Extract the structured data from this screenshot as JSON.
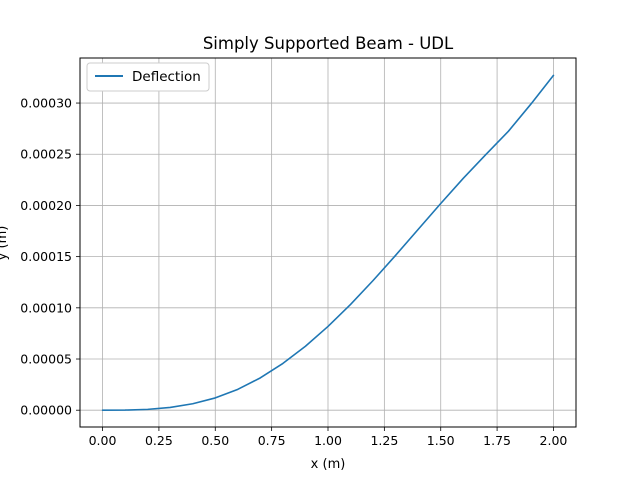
{
  "chart_data": {
    "type": "line",
    "title": "Simply Supported Beam - UDL",
    "xlabel": "x (m)",
    "ylabel": "y (m)",
    "xlim": [
      -0.1,
      2.1
    ],
    "ylim": [
      -1.64e-05,
      0.000344
    ],
    "xticks": [
      0.0,
      0.25,
      0.5,
      0.75,
      1.0,
      1.25,
      1.5,
      1.75,
      2.0
    ],
    "xtick_labels": [
      "0.00",
      "0.25",
      "0.50",
      "0.75",
      "1.00",
      "1.25",
      "1.50",
      "1.75",
      "2.00"
    ],
    "yticks": [
      0.0,
      5e-05,
      0.0001,
      0.00015,
      0.0002,
      0.00025,
      0.0003
    ],
    "ytick_labels": [
      "0.00000",
      "0.00005",
      "0.00010",
      "0.00015",
      "0.00020",
      "0.00025",
      "0.00030"
    ],
    "grid": true,
    "legend_position": "top-left",
    "series": [
      {
        "name": "Deflection",
        "color": "#1f77b4",
        "x": [
          0.0,
          0.1,
          0.2,
          0.3,
          0.4,
          0.5,
          0.6,
          0.7,
          0.8,
          0.9,
          1.0,
          1.1,
          1.2,
          1.3,
          1.4,
          1.5,
          1.6,
          1.7,
          1.8,
          1.9,
          2.0
        ],
        "y": [
          0.0,
          1.1e-07,
          8.2e-07,
          2.7e-06,
          6.3e-06,
          1.2e-05,
          2.04e-05,
          3.16e-05,
          4.57e-05,
          6.25e-05,
          8.18e-05,
          0.0001033,
          0.0001267,
          0.0001513,
          0.0001766,
          0.0002019,
          0.0002265,
          0.0002497,
          0.0002724,
          0.000299,
          0.000327
        ]
      }
    ]
  }
}
